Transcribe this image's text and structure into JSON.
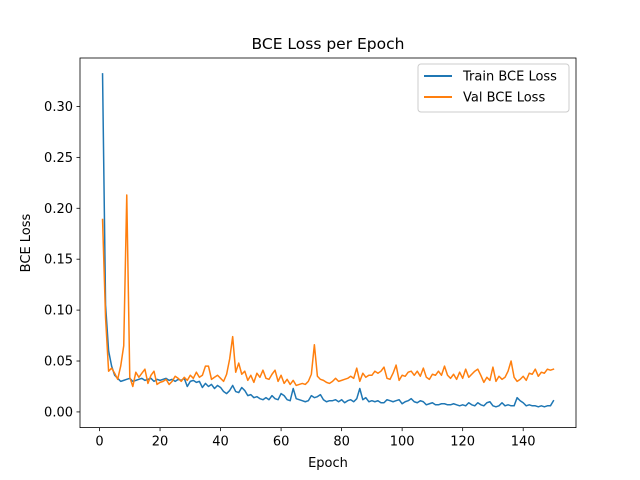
{
  "chart_data": {
    "type": "line",
    "title": "BCE Loss per Epoch",
    "xlabel": "Epoch",
    "ylabel": "BCE Loss",
    "xlim": [
      -6.45,
      157.45
    ],
    "ylim": [
      -0.0154,
      0.3476
    ],
    "xticks": [
      0,
      20,
      40,
      60,
      80,
      100,
      120,
      140
    ],
    "yticks": [
      0.0,
      0.05,
      0.1,
      0.15,
      0.2,
      0.25,
      0.3
    ],
    "ytick_labels": [
      "0.00",
      "0.05",
      "0.10",
      "0.15",
      "0.20",
      "0.25",
      "0.30"
    ],
    "legend_position": "top-right",
    "series": [
      {
        "name": "Train BCE Loss",
        "color": "#1f77b4",
        "values": [
          0.332,
          0.105,
          0.06,
          0.045,
          0.036,
          0.033,
          0.03,
          0.031,
          0.032,
          0.033,
          0.03,
          0.031,
          0.032,
          0.033,
          0.031,
          0.032,
          0.033,
          0.03,
          0.032,
          0.031,
          0.032,
          0.033,
          0.031,
          0.032,
          0.03,
          0.032,
          0.031,
          0.033,
          0.025,
          0.03,
          0.031,
          0.029,
          0.03,
          0.024,
          0.028,
          0.025,
          0.027,
          0.023,
          0.026,
          0.024,
          0.02,
          0.018,
          0.021,
          0.026,
          0.02,
          0.019,
          0.024,
          0.021,
          0.016,
          0.017,
          0.014,
          0.015,
          0.013,
          0.012,
          0.014,
          0.012,
          0.016,
          0.013,
          0.012,
          0.018,
          0.016,
          0.012,
          0.011,
          0.023,
          0.013,
          0.012,
          0.011,
          0.01,
          0.011,
          0.016,
          0.014,
          0.015,
          0.017,
          0.012,
          0.01,
          0.011,
          0.011,
          0.012,
          0.01,
          0.012,
          0.009,
          0.011,
          0.012,
          0.01,
          0.013,
          0.023,
          0.012,
          0.014,
          0.01,
          0.011,
          0.01,
          0.011,
          0.009,
          0.009,
          0.012,
          0.011,
          0.01,
          0.011,
          0.012,
          0.008,
          0.01,
          0.011,
          0.013,
          0.01,
          0.009,
          0.011,
          0.01,
          0.007,
          0.008,
          0.009,
          0.007,
          0.007,
          0.008,
          0.008,
          0.007,
          0.007,
          0.008,
          0.007,
          0.006,
          0.007,
          0.006,
          0.009,
          0.007,
          0.006,
          0.009,
          0.007,
          0.006,
          0.009,
          0.01,
          0.006,
          0.005,
          0.006,
          0.009,
          0.006,
          0.007,
          0.006,
          0.006,
          0.014,
          0.011,
          0.009,
          0.006,
          0.007,
          0.006,
          0.006,
          0.005,
          0.006,
          0.005,
          0.006,
          0.006,
          0.011
        ]
      },
      {
        "name": "Val BCE Loss",
        "color": "#ff7f0e",
        "values": [
          0.189,
          0.092,
          0.04,
          0.043,
          0.038,
          0.032,
          0.045,
          0.065,
          0.213,
          0.034,
          0.025,
          0.039,
          0.034,
          0.038,
          0.042,
          0.028,
          0.036,
          0.04,
          0.027,
          0.029,
          0.03,
          0.032,
          0.027,
          0.03,
          0.035,
          0.033,
          0.03,
          0.034,
          0.031,
          0.036,
          0.033,
          0.039,
          0.034,
          0.036,
          0.045,
          0.045,
          0.032,
          0.034,
          0.036,
          0.033,
          0.03,
          0.037,
          0.052,
          0.074,
          0.039,
          0.048,
          0.037,
          0.04,
          0.031,
          0.036,
          0.029,
          0.038,
          0.034,
          0.041,
          0.033,
          0.032,
          0.037,
          0.041,
          0.03,
          0.036,
          0.028,
          0.032,
          0.027,
          0.031,
          0.026,
          0.027,
          0.028,
          0.027,
          0.03,
          0.037,
          0.066,
          0.035,
          0.032,
          0.031,
          0.029,
          0.028,
          0.03,
          0.033,
          0.03,
          0.031,
          0.032,
          0.033,
          0.035,
          0.033,
          0.043,
          0.03,
          0.038,
          0.034,
          0.036,
          0.036,
          0.04,
          0.038,
          0.04,
          0.044,
          0.033,
          0.032,
          0.038,
          0.046,
          0.031,
          0.036,
          0.035,
          0.039,
          0.04,
          0.036,
          0.04,
          0.035,
          0.043,
          0.034,
          0.032,
          0.037,
          0.036,
          0.04,
          0.036,
          0.045,
          0.036,
          0.033,
          0.037,
          0.032,
          0.039,
          0.033,
          0.042,
          0.034,
          0.037,
          0.04,
          0.042,
          0.036,
          0.029,
          0.034,
          0.031,
          0.044,
          0.03,
          0.035,
          0.032,
          0.034,
          0.04,
          0.05,
          0.034,
          0.03,
          0.032,
          0.035,
          0.031,
          0.038,
          0.037,
          0.042,
          0.035,
          0.039,
          0.038,
          0.042,
          0.041,
          0.042
        ]
      }
    ]
  }
}
